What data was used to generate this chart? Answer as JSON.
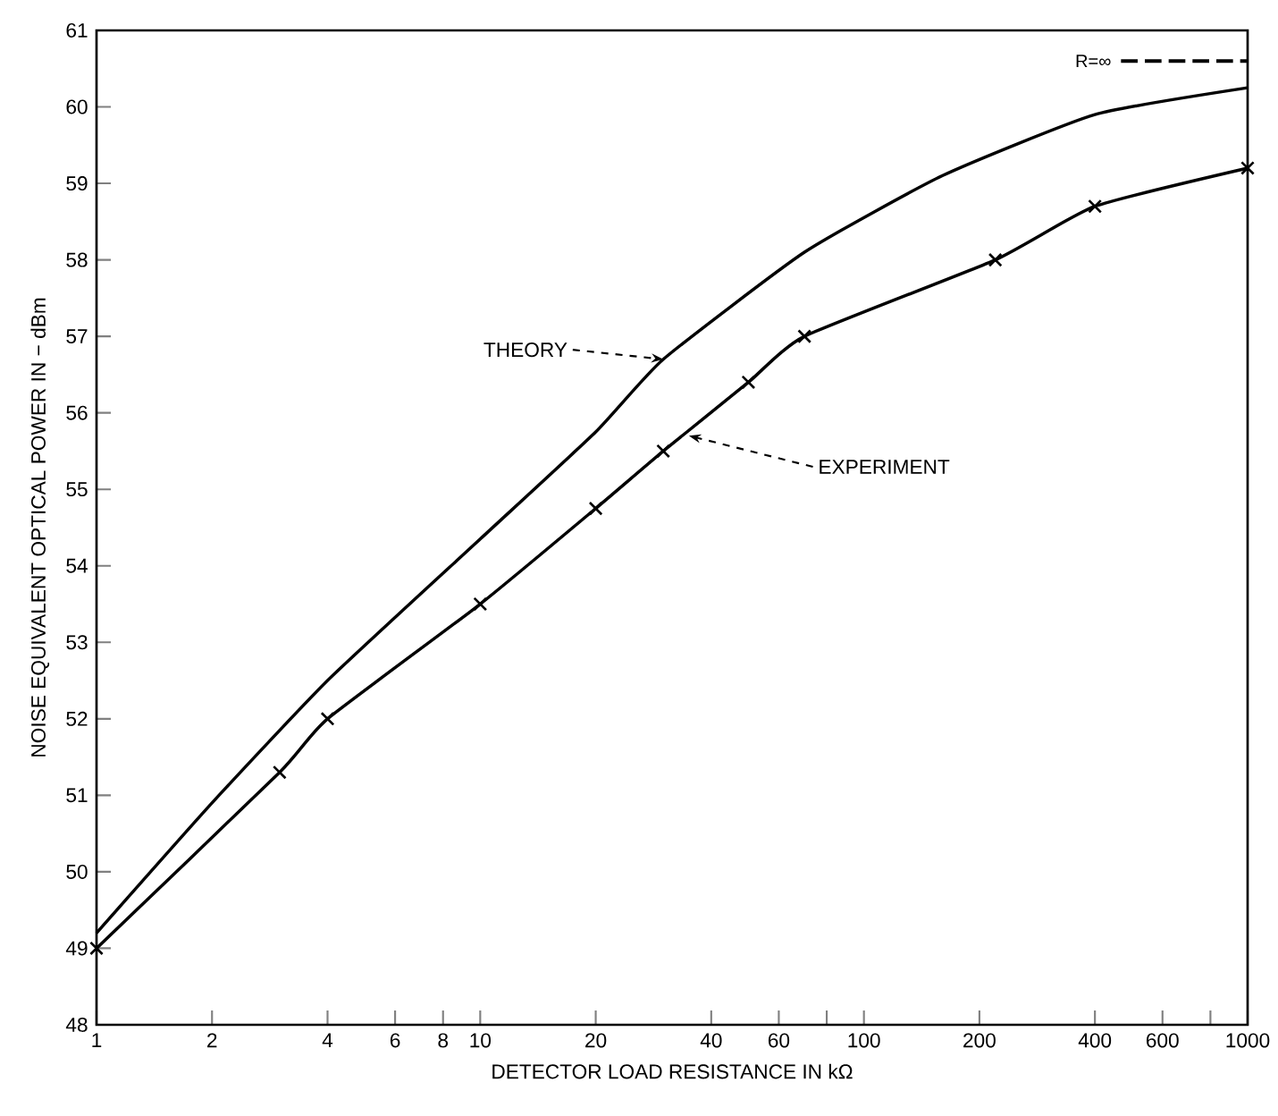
{
  "chart_data": {
    "type": "line",
    "xlabel": "DETECTOR LOAD RESISTANCE IN kΩ",
    "ylabel": "NOISE EQUIVALENT OPTICAL POWER IN − dBm",
    "log": "x",
    "xlim": [
      1,
      1000
    ],
    "ylim": [
      48,
      61
    ],
    "xticks": [
      1,
      2,
      4,
      6,
      8,
      10,
      20,
      40,
      60,
      {
        "value": 80,
        "label": null
      },
      100,
      200,
      400,
      600,
      {
        "value": 800,
        "label": null
      },
      1000
    ],
    "yticks": [
      48,
      49,
      50,
      51,
      52,
      53,
      54,
      55,
      56,
      57,
      58,
      59,
      60,
      61
    ],
    "grid": false,
    "line_style": "solid",
    "series": [
      {
        "color": "#000000",
        "marker": "none",
        "x": [
          1,
          2,
          4,
          10,
          20,
          30,
          70,
          160,
          400,
          1000
        ],
        "values": [
          49.2,
          50.9,
          52.5,
          54.35,
          55.75,
          56.7,
          58.1,
          59.1,
          59.9,
          60.25
        ]
      },
      {
        "color": "#000000",
        "marker": "cross",
        "x": [
          1,
          3,
          4,
          10,
          20,
          30,
          50,
          70,
          220,
          400,
          1000
        ],
        "values": [
          49.0,
          51.3,
          52.0,
          53.5,
          54.75,
          55.5,
          56.4,
          57.0,
          58.0,
          58.7,
          59.2
        ]
      }
    ],
    "ref_lines": [
      {
        "axis": "y",
        "value": 60.6,
        "label": "R=∞",
        "line_style": "dashed",
        "color": "#000000"
      }
    ],
    "annotations": [
      {
        "text": "THEORY",
        "x": 30,
        "y": 56.7
      },
      {
        "text": "EXPERIMENT",
        "x": 35,
        "y": 55.7
      }
    ]
  }
}
